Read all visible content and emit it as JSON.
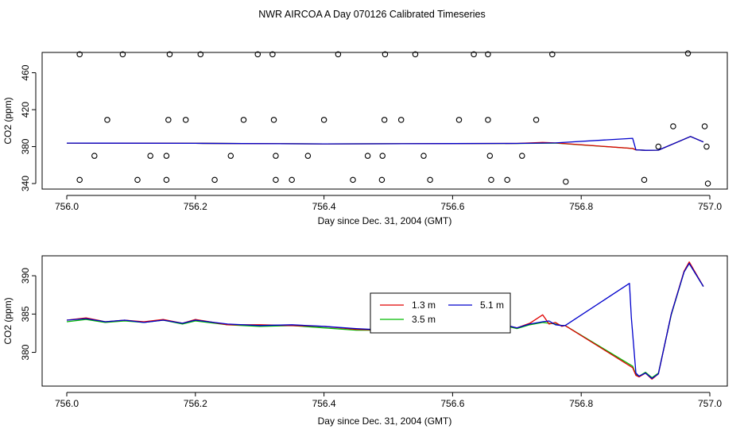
{
  "title": "NWR AIRCOA A  Day 070126  Calibrated Timeseries",
  "colors": {
    "1.3 m": "#e00000",
    "3.5 m": "#00bb00",
    "5.1 m": "#0000cc"
  },
  "chart_data": [
    {
      "type": "line",
      "panel": "top",
      "xlabel": "Day since Dec. 31, 2004 (GMT)",
      "ylabel": "CO2 (ppm)",
      "xlim": [
        756.0,
        757.0
      ],
      "ylim": [
        334,
        482
      ],
      "xticks": [
        756.0,
        756.2,
        756.4,
        756.6,
        756.8,
        757.0
      ],
      "xtick_labels": [
        "756.0",
        "756.2",
        "756.4",
        "756.6",
        "756.8",
        "757.0"
      ],
      "yticks": [
        340,
        380,
        420,
        460
      ],
      "ytick_labels": [
        "340",
        "380",
        "420",
        "460"
      ],
      "calibration_points": {
        "marker": "open-circle",
        "x": [
          756.02,
          756.087,
          756.16,
          756.208,
          756.297,
          756.32,
          756.422,
          756.495,
          756.542,
          756.633,
          756.655,
          756.755,
          756.966,
          756.063,
          756.158,
          756.185,
          756.275,
          756.322,
          756.4,
          756.494,
          756.52,
          756.61,
          756.655,
          756.73,
          756.943,
          756.992,
          756.043,
          756.13,
          756.155,
          756.255,
          756.325,
          756.375,
          756.468,
          756.491,
          756.555,
          756.658,
          756.708,
          756.92,
          756.995,
          756.02,
          756.11,
          756.155,
          756.23,
          756.325,
          756.35,
          756.445,
          756.49,
          756.565,
          756.66,
          756.685,
          756.776,
          756.898,
          756.997
        ],
        "y": [
          480,
          480,
          480,
          480,
          480,
          480,
          480,
          480,
          480,
          480,
          480,
          480,
          481,
          409,
          409,
          409,
          409,
          409,
          409,
          409,
          409,
          409,
          409,
          409,
          402,
          402,
          370,
          370,
          370,
          370,
          370,
          370,
          370,
          370,
          370,
          370,
          370,
          380,
          380,
          344,
          344,
          344,
          344,
          344,
          344,
          344,
          344,
          344,
          344,
          344,
          342,
          344,
          340
        ]
      },
      "series": [
        {
          "name": "1.3 m",
          "x": [
            756.0,
            756.2,
            756.4,
            756.6,
            756.7,
            756.74,
            756.76,
            756.88,
            756.885,
            756.9,
            756.92,
            756.95,
            756.97,
            756.99
          ],
          "y": [
            383.8,
            383.6,
            383.0,
            383.3,
            383.5,
            384.5,
            384.0,
            378.0,
            376.5,
            376.0,
            376.2,
            385.0,
            391.0,
            385.0
          ]
        },
        {
          "name": "3.5 m",
          "x": [
            756.0,
            756.2,
            756.4,
            756.6,
            756.7,
            756.76,
            756.88,
            756.885,
            756.9,
            756.92,
            756.95,
            756.97,
            756.99
          ],
          "y": [
            383.8,
            383.6,
            383.0,
            383.3,
            383.4,
            383.8,
            378.0,
            376.5,
            376.0,
            376.2,
            385.0,
            391.0,
            385.0
          ]
        },
        {
          "name": "5.1 m",
          "x": [
            756.0,
            756.2,
            756.4,
            756.6,
            756.7,
            756.76,
            756.88,
            756.885,
            756.9,
            756.92,
            756.95,
            756.97,
            756.99
          ],
          "y": [
            383.8,
            383.6,
            383.0,
            383.3,
            383.5,
            384.0,
            389.0,
            376.5,
            376.0,
            376.2,
            385.0,
            391.0,
            385.0
          ]
        }
      ]
    },
    {
      "type": "line",
      "panel": "bottom",
      "xlabel": "Day since Dec. 31, 2004 (GMT)",
      "ylabel": "CO2 (ppm)",
      "xlim": [
        756.0,
        757.0
      ],
      "ylim": [
        375.6,
        392.6
      ],
      "xticks": [
        756.0,
        756.2,
        756.4,
        756.6,
        756.8,
        757.0
      ],
      "xtick_labels": [
        "756.0",
        "756.2",
        "756.4",
        "756.6",
        "756.8",
        "757.0"
      ],
      "yticks": [
        380,
        385,
        390
      ],
      "ytick_labels": [
        "380",
        "385",
        "390"
      ],
      "legend": {
        "position": "center",
        "entries": [
          "1.3 m",
          "3.5 m",
          "5.1 m"
        ]
      },
      "series": [
        {
          "name": "1.3 m",
          "x": [
            756.0,
            756.03,
            756.06,
            756.09,
            756.12,
            756.15,
            756.18,
            756.2,
            756.25,
            756.3,
            756.35,
            756.4,
            756.45,
            756.5,
            756.55,
            756.6,
            756.65,
            756.69,
            756.7,
            756.72,
            756.74,
            756.75,
            756.76,
            756.77,
            756.775,
            756.88,
            756.885,
            756.89,
            756.9,
            756.91,
            756.92,
            756.94,
            756.96,
            756.968,
            756.99
          ],
          "y": [
            384.2,
            384.5,
            384.0,
            384.2,
            384.0,
            384.3,
            383.8,
            384.3,
            383.6,
            383.6,
            383.5,
            383.4,
            383.0,
            382.9,
            383.1,
            383.4,
            383.5,
            383.4,
            383.2,
            383.8,
            384.9,
            383.7,
            383.9,
            383.4,
            383.5,
            378.0,
            377.0,
            376.8,
            377.3,
            376.5,
            377.2,
            385.0,
            390.6,
            391.8,
            388.6
          ]
        },
        {
          "name": "3.5 m",
          "x": [
            756.0,
            756.03,
            756.06,
            756.09,
            756.12,
            756.15,
            756.18,
            756.2,
            756.25,
            756.3,
            756.35,
            756.4,
            756.45,
            756.5,
            756.55,
            756.6,
            756.65,
            756.69,
            756.7,
            756.72,
            756.74,
            756.75,
            756.76,
            756.77,
            756.775,
            756.88,
            756.885,
            756.89,
            756.9,
            756.91,
            756.92,
            756.94,
            756.96,
            756.968,
            756.99
          ],
          "y": [
            384.0,
            384.3,
            383.9,
            384.1,
            383.9,
            384.2,
            383.7,
            384.1,
            383.6,
            383.4,
            383.5,
            383.2,
            382.9,
            382.9,
            383.0,
            383.3,
            383.5,
            383.3,
            383.1,
            383.6,
            383.9,
            383.8,
            383.7,
            383.5,
            383.5,
            378.2,
            377.1,
            376.9,
            377.4,
            376.7,
            377.3,
            384.9,
            390.5,
            391.6,
            388.6
          ]
        },
        {
          "name": "5.1 m",
          "x": [
            756.0,
            756.03,
            756.06,
            756.09,
            756.12,
            756.15,
            756.18,
            756.2,
            756.25,
            756.3,
            756.35,
            756.4,
            756.45,
            756.5,
            756.55,
            756.6,
            756.65,
            756.69,
            756.7,
            756.72,
            756.74,
            756.75,
            756.76,
            756.77,
            756.775,
            756.875,
            756.878,
            756.885,
            756.89,
            756.9,
            756.91,
            756.92,
            756.94,
            756.96,
            756.968,
            756.99
          ],
          "y": [
            384.2,
            384.4,
            384.0,
            384.2,
            383.9,
            384.2,
            383.8,
            384.2,
            383.7,
            383.5,
            383.6,
            383.4,
            383.1,
            382.9,
            383.1,
            383.4,
            383.5,
            383.4,
            383.2,
            383.7,
            384.0,
            384.1,
            383.6,
            383.5,
            383.5,
            389.0,
            384.5,
            377.3,
            376.9,
            377.3,
            376.6,
            377.2,
            385.0,
            390.5,
            391.6,
            388.6
          ]
        }
      ]
    }
  ]
}
